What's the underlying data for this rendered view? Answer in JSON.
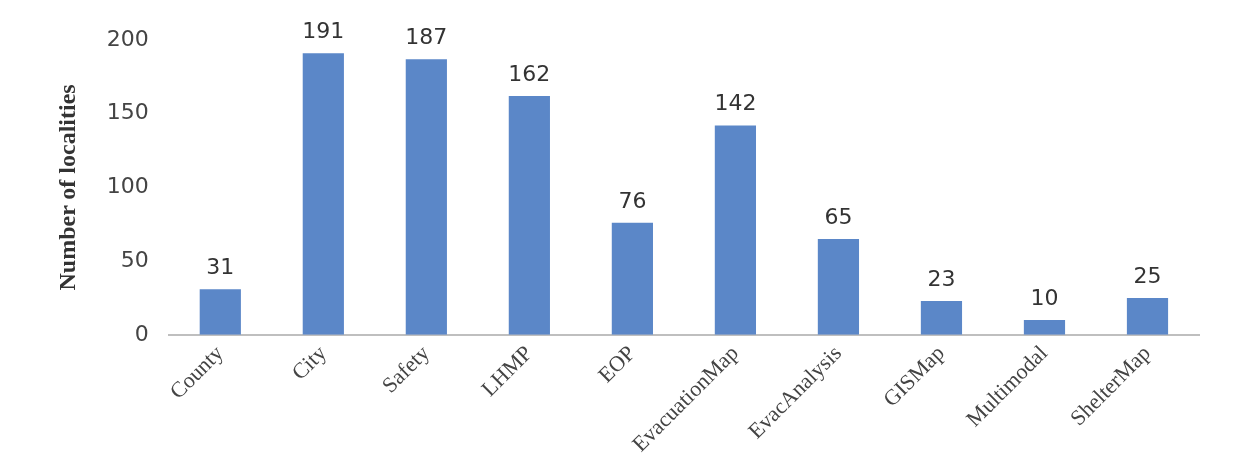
{
  "chart_data": {
    "type": "bar",
    "ylabel": "Number of localities",
    "categories": [
      "County",
      "City",
      "Safety",
      "LHMP",
      "EOP",
      "EvacuationMap",
      "EvacAnalysis",
      "GISMap",
      "Multimodal",
      "ShelterMap"
    ],
    "values": [
      31,
      191,
      187,
      162,
      76,
      142,
      65,
      23,
      10,
      25
    ],
    "color": "#5b87c8",
    "ylim": [
      0,
      200
    ],
    "yticks": [
      0,
      50,
      100,
      150,
      200
    ],
    "grid": false,
    "legend": false,
    "data_labels": true
  }
}
